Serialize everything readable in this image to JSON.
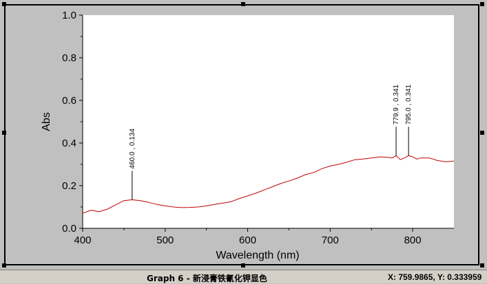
{
  "chart_data": {
    "type": "line",
    "xlabel": "Wavelength (nm)",
    "ylabel": "Abs",
    "xlim": [
      400,
      850
    ],
    "ylim": [
      0.0,
      1.0
    ],
    "xticks": [
      "400",
      "500",
      "600",
      "700",
      "800"
    ],
    "yticks": [
      "0.0",
      "0.2",
      "0.4",
      "0.6",
      "0.8",
      "1.0"
    ],
    "line_color": "#c00000",
    "series": [
      {
        "x": [
          400,
          410,
          420,
          430,
          440,
          450,
          460,
          470,
          480,
          490,
          500,
          510,
          520,
          530,
          540,
          550,
          560,
          570,
          580,
          590,
          600,
          610,
          620,
          630,
          640,
          650,
          660,
          670,
          680,
          690,
          700,
          710,
          720,
          730,
          740,
          750,
          760,
          770,
          775,
          780,
          785,
          790,
          795,
          800,
          805,
          810,
          820,
          830,
          840,
          850
        ],
        "y": [
          0.07,
          0.085,
          0.078,
          0.09,
          0.11,
          0.13,
          0.134,
          0.13,
          0.122,
          0.112,
          0.105,
          0.1,
          0.097,
          0.098,
          0.1,
          0.105,
          0.112,
          0.118,
          0.125,
          0.14,
          0.152,
          0.165,
          0.18,
          0.195,
          0.21,
          0.222,
          0.235,
          0.252,
          0.262,
          0.28,
          0.292,
          0.3,
          0.31,
          0.322,
          0.325,
          0.33,
          0.335,
          0.333,
          0.33,
          0.341,
          0.322,
          0.33,
          0.341,
          0.335,
          0.325,
          0.33,
          0.33,
          0.318,
          0.312,
          0.315
        ]
      }
    ],
    "peaks": [
      {
        "x": 460.0,
        "y": 0.134,
        "label": "460.0 , 0.134"
      },
      {
        "x": 779.9,
        "y": 0.341,
        "label": "779.9 , 0.341"
      },
      {
        "x": 795.0,
        "y": 0.341,
        "label": "795.0 , 0.341"
      }
    ]
  },
  "status": {
    "title": "Graph 6 - 新浸膏铁氰化钾显色",
    "coords": "X: 759.9865, Y: 0.333959"
  }
}
